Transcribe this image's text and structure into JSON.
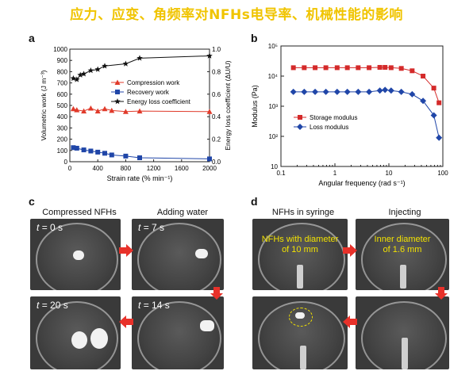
{
  "banner": "应力、应变、角频率对NFHs电导率、机械性能的影响",
  "panels": {
    "a": "a",
    "b": "b",
    "c": "c",
    "d": "d"
  },
  "chart_data": [
    {
      "type": "line",
      "panel": "a",
      "xlabel": "Strain rate (% min⁻¹)",
      "ylabel_left": "Volumetric work (J m⁻³)",
      "ylabel_right": "Energy loss coefficient (ΔU/U)",
      "xlim": [
        0,
        2000
      ],
      "ylim_left": [
        0,
        1000
      ],
      "ylim_right": [
        0,
        1.0
      ],
      "xticks": [
        0,
        400,
        800,
        1200,
        1600,
        2000
      ],
      "yticks_left": [
        0,
        100,
        200,
        300,
        400,
        500,
        600,
        700,
        800,
        900,
        1000
      ],
      "yticks_right": [
        0.0,
        0.2,
        0.4,
        0.6,
        0.8,
        1.0
      ],
      "legend_position": "right",
      "series": [
        {
          "name": "Compression work",
          "axis": "left",
          "color": "#e03a2a",
          "marker": "triangle",
          "x": [
            50,
            100,
            200,
            300,
            400,
            500,
            600,
            800,
            1000,
            2000
          ],
          "y": [
            470,
            460,
            450,
            475,
            450,
            470,
            455,
            445,
            450,
            445
          ]
        },
        {
          "name": "Recovery work",
          "axis": "left",
          "color": "#2046a8",
          "marker": "square",
          "x": [
            50,
            100,
            200,
            300,
            400,
            500,
            600,
            800,
            1000,
            2000
          ],
          "y": [
            125,
            120,
            105,
            95,
            85,
            75,
            60,
            50,
            35,
            25
          ]
        },
        {
          "name": "Energy loss coefficient",
          "axis": "right",
          "color": "#111111",
          "marker": "star",
          "x": [
            50,
            100,
            150,
            200,
            300,
            400,
            500,
            800,
            1000,
            2000
          ],
          "y": [
            0.74,
            0.73,
            0.77,
            0.78,
            0.81,
            0.82,
            0.85,
            0.87,
            0.92,
            0.94
          ]
        }
      ]
    },
    {
      "type": "line",
      "panel": "b",
      "xlabel": "Angular frequency (rad s⁻¹)",
      "ylabel": "Modulus (Pa)",
      "xscale": "log",
      "yscale": "log",
      "xlim": [
        0.1,
        100
      ],
      "ylim": [
        10,
        100000
      ],
      "xticks": [
        "0.1",
        "1",
        "10",
        "100"
      ],
      "yticks": [
        "10",
        "10²",
        "10³",
        "10⁴",
        "10⁵"
      ],
      "legend_position": "lower-left",
      "series": [
        {
          "name": "Storage modulus",
          "color": "#d42a2a",
          "marker": "square",
          "x": [
            0.17,
            0.27,
            0.43,
            0.68,
            1.1,
            1.7,
            2.7,
            4.3,
            6.8,
            8.5,
            11,
            17,
            27,
            43,
            68,
            85
          ],
          "y": [
            19000,
            19000,
            19000,
            19000,
            19000,
            19000,
            19000,
            19000,
            19500,
            19500,
            19000,
            18000,
            15000,
            10000,
            4000,
            1300
          ]
        },
        {
          "name": "Loss modulus",
          "color": "#2046a8",
          "marker": "diamond",
          "x": [
            0.17,
            0.27,
            0.43,
            0.68,
            1.1,
            1.7,
            2.7,
            4.3,
            6.8,
            8.5,
            11,
            17,
            27,
            43,
            68,
            85
          ],
          "y": [
            3000,
            3000,
            3000,
            3000,
            3000,
            3000,
            3000,
            3000,
            3300,
            3500,
            3300,
            3000,
            2500,
            1500,
            500,
            90
          ]
        }
      ]
    }
  ],
  "panel_c": {
    "caption_left": "Compressed NFHs",
    "caption_right": "Adding water",
    "t0": "= 0 s",
    "t7": "= 7 s",
    "t14": "= 14 s",
    "t20": "= 20 s",
    "t_symbol": "t"
  },
  "panel_d": {
    "caption_left": "NFHs in syringe",
    "caption_right": "Injecting",
    "note_left_1": "NFHs with diameter",
    "note_left_2": "of 10 mm",
    "note_right_1": "Inner diameter",
    "note_right_2": "of 1.6 mm"
  },
  "colors": {
    "banner": "#f0c400",
    "arrow": "#e8312a",
    "note": "#f2e200"
  }
}
